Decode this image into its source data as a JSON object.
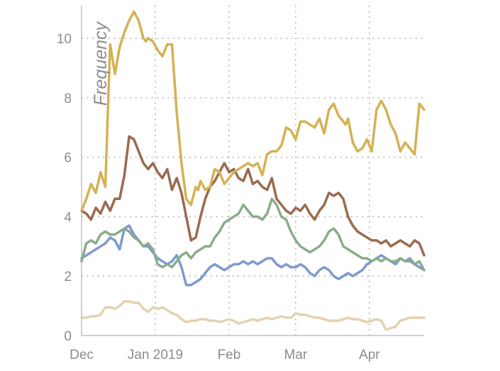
{
  "chart_data": {
    "type": "line",
    "ylabel": "Frequency",
    "xlabel": "",
    "title": "",
    "ylim": [
      0,
      11.1
    ],
    "yticks": [
      0,
      2,
      4,
      6,
      8,
      10
    ],
    "grid": true,
    "x_unit": "days since Dec 1",
    "xlim": [
      0,
      144
    ],
    "xticks": [
      {
        "label": "Dec",
        "day": 0
      },
      {
        "label": "Jan 2019",
        "day": 31
      },
      {
        "label": "Feb",
        "day": 62
      },
      {
        "label": "Mar",
        "day": 90
      },
      {
        "label": "Apr",
        "day": 121
      }
    ],
    "series": [
      {
        "name": "gold",
        "color": "#d4b254",
        "x": [
          0,
          2,
          4,
          6,
          8,
          10,
          12,
          14,
          16,
          18,
          20,
          22,
          24,
          26,
          27,
          28,
          30,
          32,
          34,
          36,
          38,
          40,
          42,
          44,
          46,
          48,
          49,
          50,
          52,
          54,
          56,
          58,
          60,
          62,
          64,
          66,
          68,
          70,
          72,
          74,
          76,
          78,
          80,
          82,
          84,
          86,
          88,
          90,
          92,
          94,
          96,
          98,
          100,
          102,
          104,
          106,
          108,
          110,
          111,
          112,
          114,
          116,
          118,
          120,
          122,
          124,
          126,
          128,
          130,
          132,
          134,
          136,
          138,
          140,
          142,
          144
        ],
        "y": [
          4.2,
          4.6,
          5.1,
          4.8,
          5.5,
          5.0,
          9.8,
          8.8,
          9.7,
          10.2,
          10.6,
          10.9,
          10.6,
          10.0,
          9.9,
          10.0,
          9.9,
          9.6,
          9.4,
          9.8,
          9.8,
          7.5,
          5.8,
          4.6,
          4.4,
          5.0,
          4.9,
          5.2,
          4.9,
          5.0,
          5.6,
          5.5,
          5.1,
          5.3,
          5.5,
          5.6,
          5.7,
          5.8,
          5.7,
          5.8,
          5.4,
          6.1,
          6.2,
          6.2,
          6.4,
          7.0,
          6.9,
          6.6,
          7.2,
          7.2,
          7.1,
          7.0,
          7.3,
          6.8,
          7.6,
          7.8,
          7.4,
          7.2,
          7.1,
          7.3,
          6.5,
          6.2,
          6.3,
          6.6,
          6.2,
          7.6,
          7.9,
          7.6,
          7.1,
          6.8,
          6.2,
          6.5,
          6.3,
          6.1,
          7.8,
          7.6
        ]
      },
      {
        "name": "brown",
        "color": "#9a6b50",
        "x": [
          0,
          2,
          4,
          6,
          8,
          10,
          12,
          14,
          16,
          18,
          20,
          22,
          24,
          26,
          28,
          30,
          32,
          34,
          36,
          38,
          40,
          42,
          44,
          46,
          48,
          50,
          52,
          54,
          56,
          58,
          60,
          62,
          64,
          66,
          68,
          70,
          72,
          74,
          76,
          78,
          80,
          82,
          84,
          86,
          88,
          90,
          92,
          94,
          96,
          98,
          100,
          102,
          104,
          106,
          108,
          110,
          112,
          114,
          116,
          118,
          120,
          122,
          124,
          126,
          128,
          130,
          132,
          134,
          136,
          138,
          140,
          142,
          144
        ],
        "y": [
          4.2,
          4.1,
          3.9,
          4.3,
          4.1,
          4.5,
          4.2,
          4.6,
          4.6,
          5.4,
          6.7,
          6.6,
          6.2,
          5.8,
          5.6,
          5.8,
          5.5,
          5.3,
          5.6,
          4.9,
          5.3,
          4.8,
          4.0,
          3.2,
          3.3,
          4.0,
          4.6,
          5.0,
          5.2,
          5.5,
          5.8,
          5.5,
          5.6,
          5.3,
          5.2,
          5.6,
          5.1,
          5.2,
          5.0,
          4.9,
          5.3,
          4.6,
          4.4,
          4.2,
          4.1,
          4.3,
          4.2,
          4.4,
          4.1,
          3.9,
          4.2,
          4.4,
          4.8,
          4.7,
          4.8,
          4.6,
          4.0,
          3.7,
          3.5,
          3.4,
          3.3,
          3.2,
          3.2,
          3.1,
          3.2,
          3.0,
          3.1,
          3.2,
          3.1,
          3.0,
          3.2,
          3.1,
          2.7
        ]
      },
      {
        "name": "green",
        "color": "#8aac8a",
        "x": [
          0,
          2,
          4,
          6,
          8,
          10,
          12,
          14,
          16,
          18,
          20,
          22,
          24,
          26,
          28,
          30,
          32,
          34,
          36,
          38,
          40,
          42,
          44,
          46,
          48,
          50,
          52,
          54,
          56,
          58,
          60,
          62,
          64,
          66,
          68,
          70,
          72,
          74,
          76,
          78,
          80,
          82,
          84,
          86,
          88,
          90,
          92,
          94,
          96,
          98,
          100,
          102,
          104,
          106,
          108,
          110,
          112,
          114,
          116,
          118,
          120,
          122,
          124,
          126,
          128,
          130,
          132,
          134,
          136,
          138,
          140,
          142,
          144
        ],
        "y": [
          2.5,
          3.1,
          3.2,
          3.1,
          3.4,
          3.5,
          3.4,
          3.4,
          3.5,
          3.6,
          3.5,
          3.3,
          3.2,
          3.0,
          3.1,
          2.9,
          2.4,
          2.3,
          2.4,
          2.3,
          2.5,
          2.7,
          2.8,
          2.6,
          2.8,
          2.9,
          3.0,
          3.0,
          3.3,
          3.5,
          3.8,
          3.9,
          4.0,
          4.1,
          4.4,
          4.2,
          4.0,
          4.0,
          3.9,
          4.1,
          4.6,
          4.4,
          4.0,
          3.9,
          3.5,
          3.2,
          3.0,
          2.9,
          2.8,
          2.9,
          3.0,
          3.2,
          3.5,
          3.6,
          3.4,
          3.0,
          2.9,
          2.8,
          2.7,
          2.6,
          2.6,
          2.5,
          2.6,
          2.5,
          2.6,
          2.5,
          2.5,
          2.6,
          2.5,
          2.5,
          2.4,
          2.5,
          2.2
        ]
      },
      {
        "name": "blue",
        "color": "#7d9bd0",
        "x": [
          0,
          2,
          4,
          6,
          8,
          10,
          12,
          14,
          16,
          18,
          20,
          22,
          24,
          26,
          28,
          30,
          32,
          34,
          36,
          38,
          40,
          42,
          44,
          46,
          48,
          50,
          52,
          54,
          56,
          58,
          60,
          62,
          64,
          66,
          68,
          70,
          72,
          74,
          76,
          78,
          80,
          82,
          84,
          86,
          88,
          90,
          92,
          94,
          96,
          98,
          100,
          102,
          104,
          106,
          108,
          110,
          112,
          114,
          116,
          118,
          120,
          122,
          124,
          126,
          128,
          130,
          132,
          134,
          136,
          138,
          140,
          142,
          144
        ],
        "y": [
          2.6,
          2.7,
          2.8,
          2.9,
          3.0,
          3.1,
          3.3,
          3.2,
          2.9,
          3.6,
          3.7,
          3.4,
          3.2,
          3.0,
          3.0,
          2.8,
          2.6,
          2.5,
          2.4,
          2.5,
          2.7,
          2.3,
          1.7,
          1.7,
          1.8,
          1.9,
          2.1,
          2.3,
          2.4,
          2.3,
          2.2,
          2.3,
          2.4,
          2.4,
          2.5,
          2.4,
          2.5,
          2.4,
          2.5,
          2.6,
          2.6,
          2.4,
          2.3,
          2.4,
          2.3,
          2.3,
          2.4,
          2.3,
          2.1,
          2.0,
          2.2,
          2.3,
          2.2,
          2.0,
          1.9,
          2.0,
          2.1,
          2.0,
          2.1,
          2.2,
          2.4,
          2.5,
          2.6,
          2.7,
          2.6,
          2.5,
          2.4,
          2.6,
          2.5,
          2.6,
          2.4,
          2.3,
          2.2
        ]
      },
      {
        "name": "beige",
        "color": "#e3d2b1",
        "x": [
          0,
          2,
          4,
          6,
          8,
          10,
          12,
          14,
          16,
          18,
          20,
          22,
          24,
          26,
          28,
          30,
          32,
          34,
          36,
          38,
          40,
          42,
          44,
          46,
          48,
          50,
          52,
          54,
          56,
          58,
          60,
          62,
          64,
          66,
          68,
          70,
          72,
          74,
          76,
          78,
          80,
          82,
          84,
          86,
          88,
          90,
          92,
          94,
          96,
          98,
          100,
          102,
          104,
          106,
          108,
          110,
          112,
          114,
          116,
          118,
          120,
          122,
          124,
          126,
          128,
          130,
          132,
          134,
          136,
          138,
          140,
          142,
          144
        ],
        "y": [
          0.6,
          0.6,
          0.65,
          0.65,
          0.7,
          0.95,
          0.95,
          0.9,
          1.0,
          1.15,
          1.15,
          1.1,
          1.1,
          0.9,
          0.8,
          0.95,
          0.9,
          0.95,
          0.85,
          0.75,
          0.7,
          0.55,
          0.45,
          0.5,
          0.5,
          0.55,
          0.55,
          0.5,
          0.5,
          0.45,
          0.5,
          0.55,
          0.5,
          0.4,
          0.45,
          0.5,
          0.55,
          0.5,
          0.55,
          0.6,
          0.55,
          0.6,
          0.65,
          0.6,
          0.6,
          0.75,
          0.7,
          0.7,
          0.65,
          0.6,
          0.6,
          0.55,
          0.5,
          0.5,
          0.5,
          0.55,
          0.6,
          0.55,
          0.55,
          0.5,
          0.45,
          0.5,
          0.55,
          0.5,
          0.2,
          0.25,
          0.3,
          0.5,
          0.55,
          0.6,
          0.6,
          0.6,
          0.6
        ]
      }
    ]
  }
}
